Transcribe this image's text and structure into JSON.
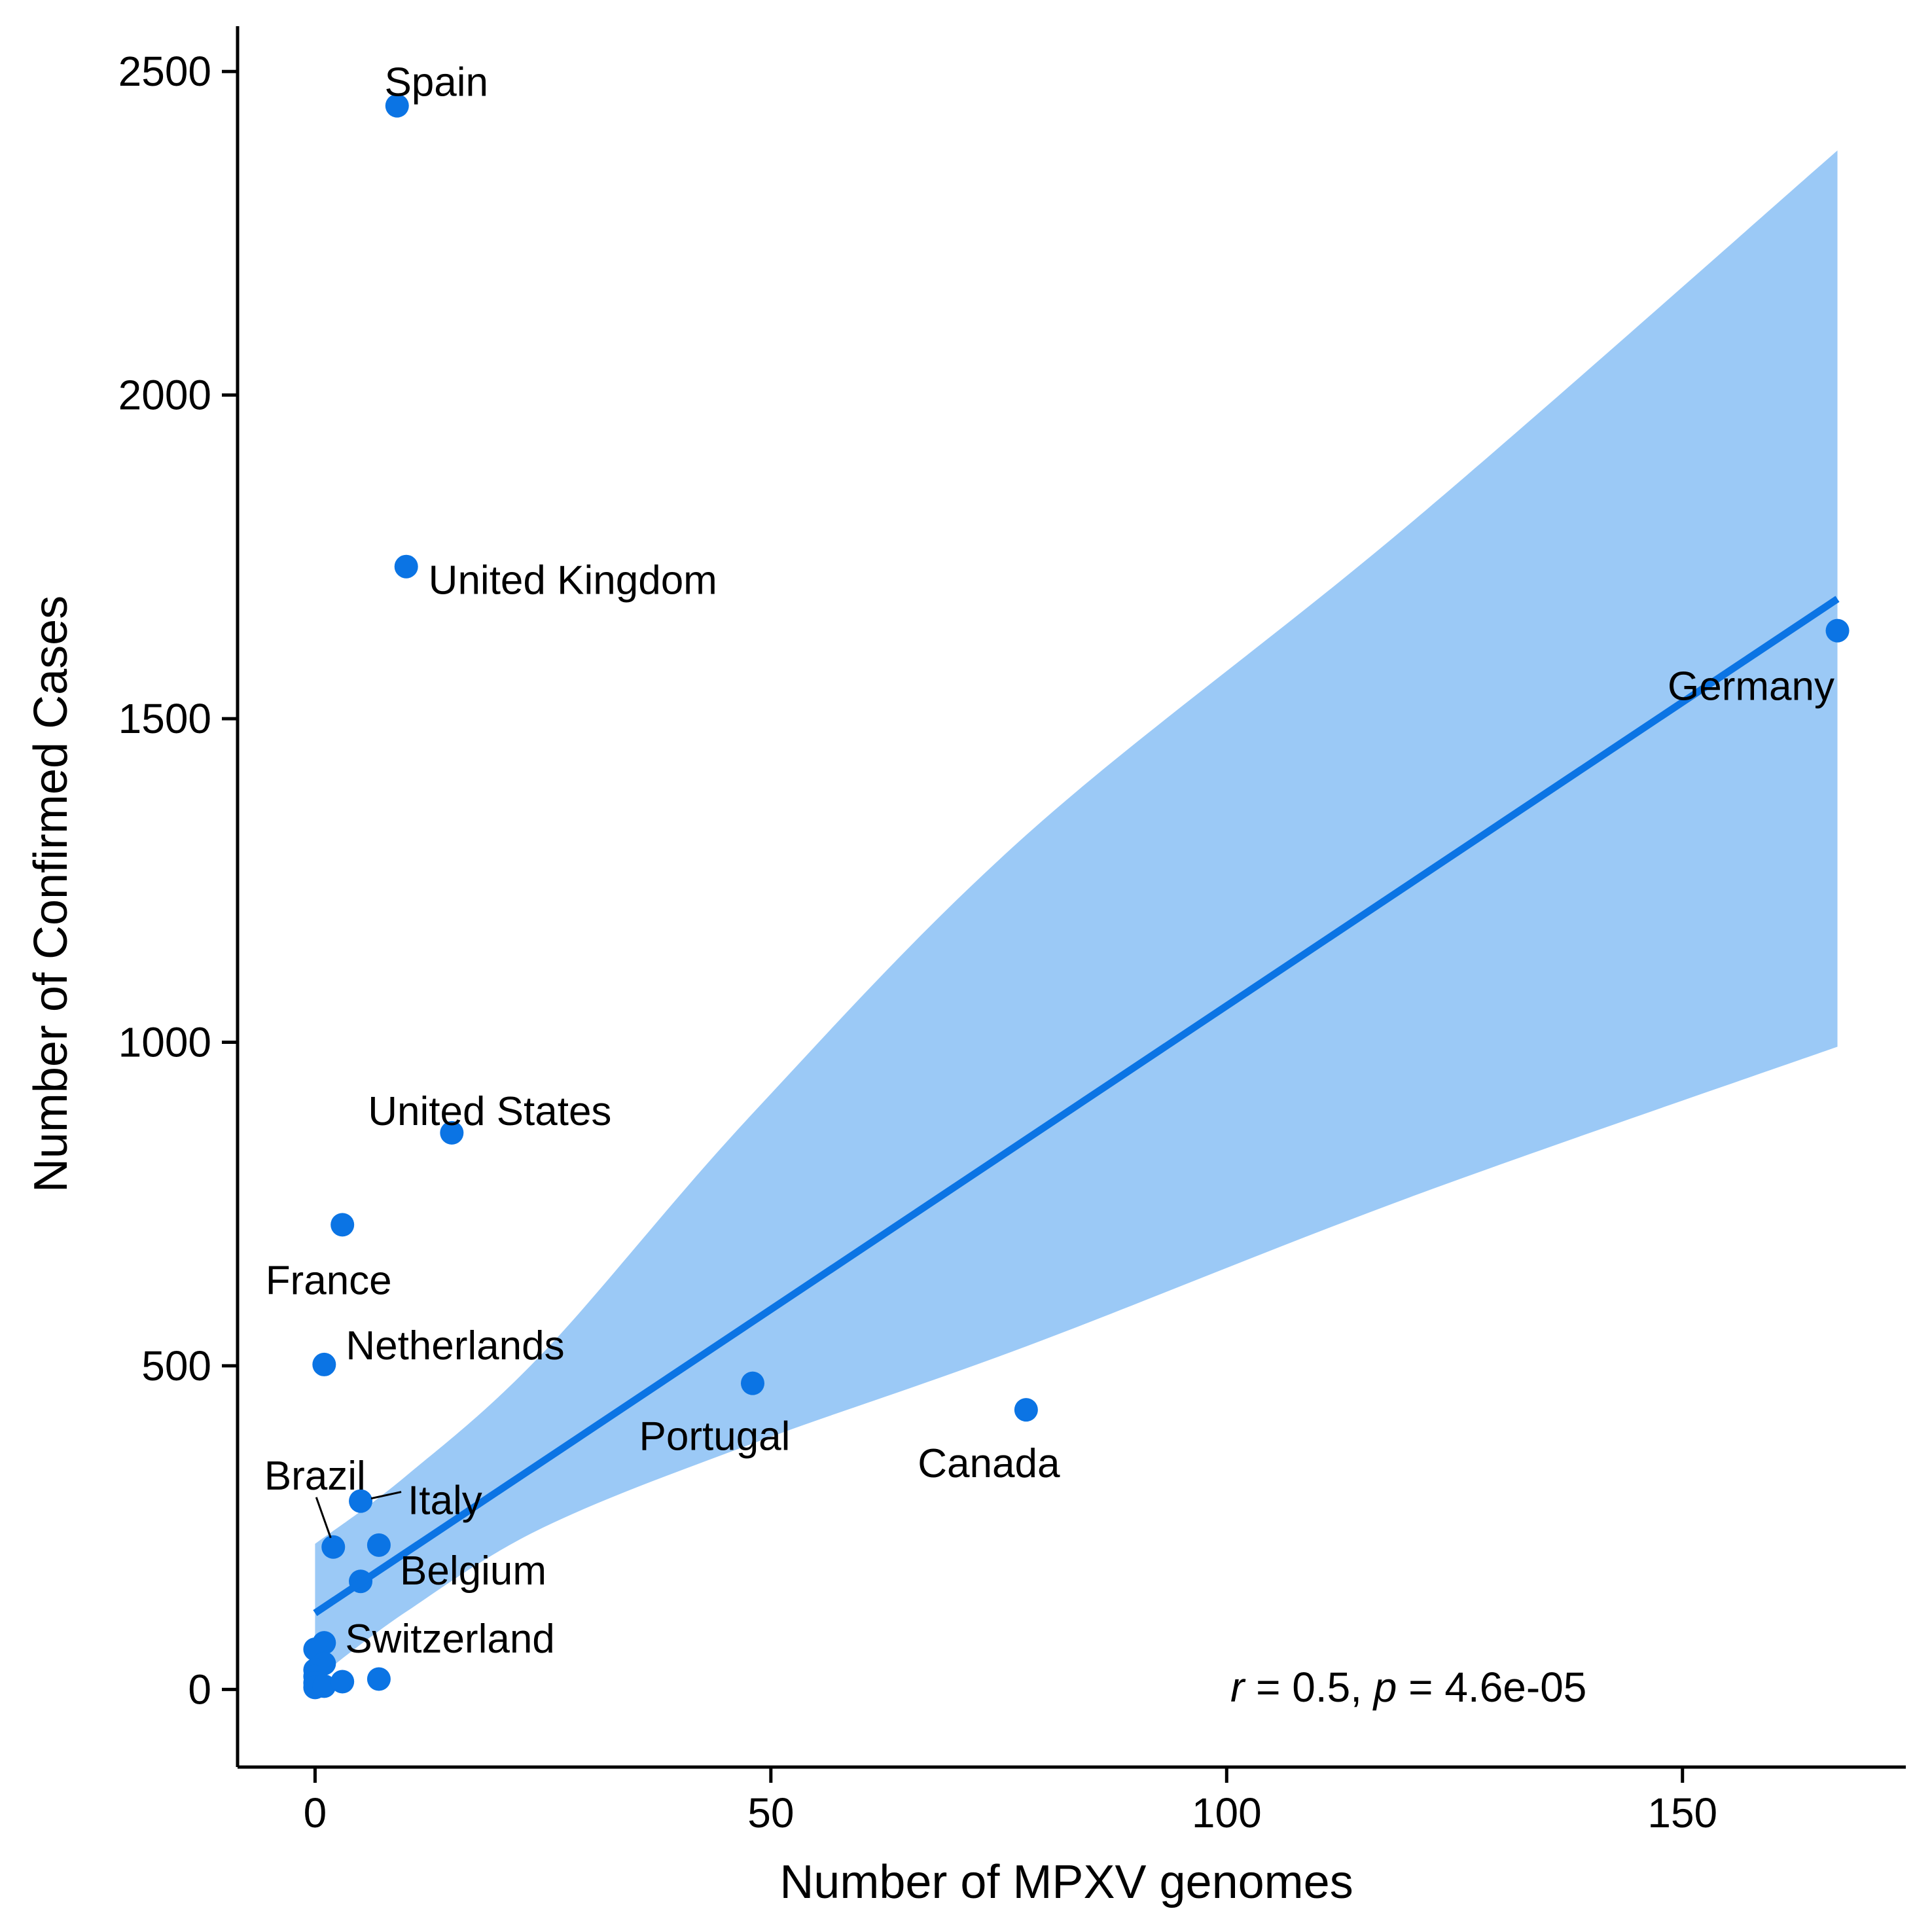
{
  "chart_data": {
    "type": "scatter",
    "title": "",
    "xlabel": "Number of MPXV genomes",
    "ylabel": "Number of Confirmed Cases",
    "xlim": [
      -8.5,
      174.5
    ],
    "ylim": [
      -120,
      2570
    ],
    "x_ticks": [
      0,
      50,
      100,
      150
    ],
    "y_ticks": [
      0,
      500,
      1000,
      1500,
      2000,
      2500
    ],
    "grid": false,
    "legend": "none",
    "point_color": "#0b74e4",
    "line_color": "#0b74e4",
    "band_color": "#9bc9f6",
    "points": [
      {
        "x": 9,
        "y": 2447,
        "label": "Spain"
      },
      {
        "x": 10,
        "y": 1735,
        "label": "United Kingdom"
      },
      {
        "x": 167,
        "y": 1636,
        "label": "Germany"
      },
      {
        "x": 15,
        "y": 860,
        "label": "United States"
      },
      {
        "x": 3,
        "y": 718,
        "label": "France"
      },
      {
        "x": 1,
        "y": 502,
        "label": "Netherlands"
      },
      {
        "x": 48,
        "y": 473,
        "label": "Portugal"
      },
      {
        "x": 78,
        "y": 432,
        "label": "Canada"
      },
      {
        "x": 5,
        "y": 291,
        "label": "Italy"
      },
      {
        "x": 2,
        "y": 220,
        "label": "Brazil"
      },
      {
        "x": 7,
        "y": 223,
        "label": ""
      },
      {
        "x": 5,
        "y": 167,
        "label": "Belgium"
      },
      {
        "x": 1,
        "y": 72,
        "label": "Switzerland"
      },
      {
        "x": 0,
        "y": 62,
        "label": ""
      },
      {
        "x": 1,
        "y": 40,
        "label": ""
      },
      {
        "x": 0,
        "y": 30,
        "label": ""
      },
      {
        "x": 0,
        "y": 20,
        "label": ""
      },
      {
        "x": 0,
        "y": 10,
        "label": ""
      },
      {
        "x": 0,
        "y": 3,
        "label": ""
      },
      {
        "x": 1,
        "y": 5,
        "label": ""
      },
      {
        "x": 3,
        "y": 12,
        "label": ""
      },
      {
        "x": 7,
        "y": 16,
        "label": ""
      }
    ],
    "regression": {
      "x_start": 0,
      "y_start": 118,
      "x_end": 167,
      "y_end": 1685
    },
    "confidence_band": {
      "x": [
        0,
        10,
        25,
        48,
        78,
        120,
        167
      ],
      "upper": [
        225,
        330,
        520,
        890,
        1320,
        1800,
        2378
      ],
      "lower": [
        15,
        120,
        250,
        380,
        530,
        760,
        993
      ]
    },
    "annotation": {
      "r_symbol": "r",
      "r_text": " = 0.5, ",
      "p_symbol": "p",
      "p_text": " = 4.6e-05"
    }
  }
}
